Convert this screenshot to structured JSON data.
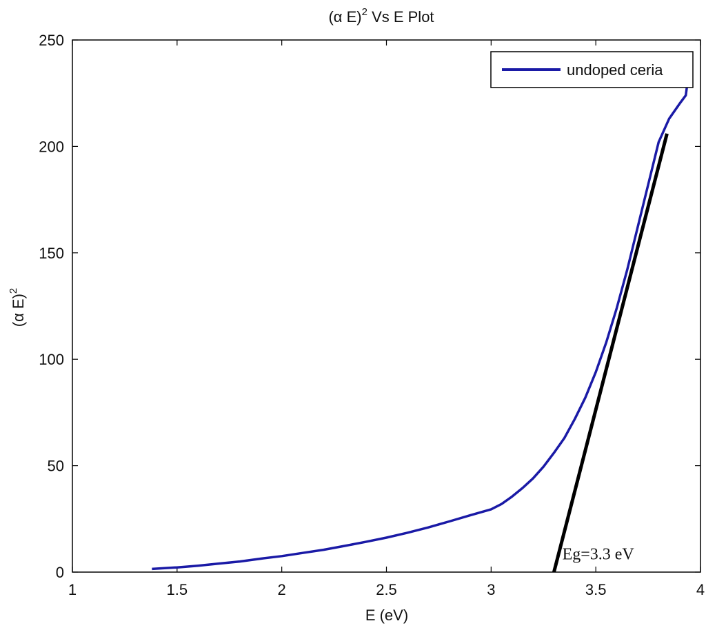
{
  "chart_data": {
    "type": "line",
    "title": "(α E)",
    "title_sup": "2",
    "title_suffix": " Vs E Plot",
    "xlabel": "E (eV)",
    "ylabel": "(α E)",
    "ylabel_sup": "2",
    "xlim": [
      1,
      4
    ],
    "ylim": [
      0,
      250
    ],
    "xticks": [
      1,
      1.5,
      2,
      2.5,
      3,
      3.5,
      4
    ],
    "xtick_labels": [
      "1",
      "1.5",
      "2",
      "2.5",
      "3",
      "3.5",
      "4"
    ],
    "yticks": [
      0,
      50,
      100,
      150,
      200,
      250
    ],
    "ytick_labels": [
      "0",
      "50",
      "100",
      "150",
      "200",
      "250"
    ],
    "grid": false,
    "legend_position": "top-right",
    "series": [
      {
        "name": "undoped ceria",
        "color": "#1a1aa6",
        "x": [
          1.38,
          1.5,
          1.6,
          1.7,
          1.8,
          1.9,
          2.0,
          2.1,
          2.2,
          2.3,
          2.4,
          2.5,
          2.6,
          2.7,
          2.8,
          2.9,
          3.0,
          3.05,
          3.1,
          3.15,
          3.2,
          3.25,
          3.3,
          3.35,
          3.4,
          3.45,
          3.5,
          3.55,
          3.6,
          3.65,
          3.7,
          3.75,
          3.8,
          3.85,
          3.9,
          3.93,
          3.95
        ],
        "y": [
          1.5,
          2.2,
          3.0,
          4.0,
          5.0,
          6.3,
          7.5,
          9.0,
          10.5,
          12.3,
          14.2,
          16.2,
          18.5,
          21.0,
          23.8,
          26.7,
          29.5,
          32.0,
          35.5,
          39.5,
          44.0,
          49.5,
          56.0,
          63.0,
          72.0,
          82.0,
          94.0,
          108.0,
          124.0,
          142.0,
          162.0,
          182.0,
          202.0,
          213.0,
          220.0,
          224.0,
          239.0
        ]
      }
    ],
    "tangent_line": {
      "color": "#000000",
      "x": [
        3.3,
        3.84
      ],
      "y": [
        0,
        206
      ]
    },
    "annotation": {
      "text": "Eg=3.3 eV",
      "x": 3.34,
      "y": 6
    }
  }
}
